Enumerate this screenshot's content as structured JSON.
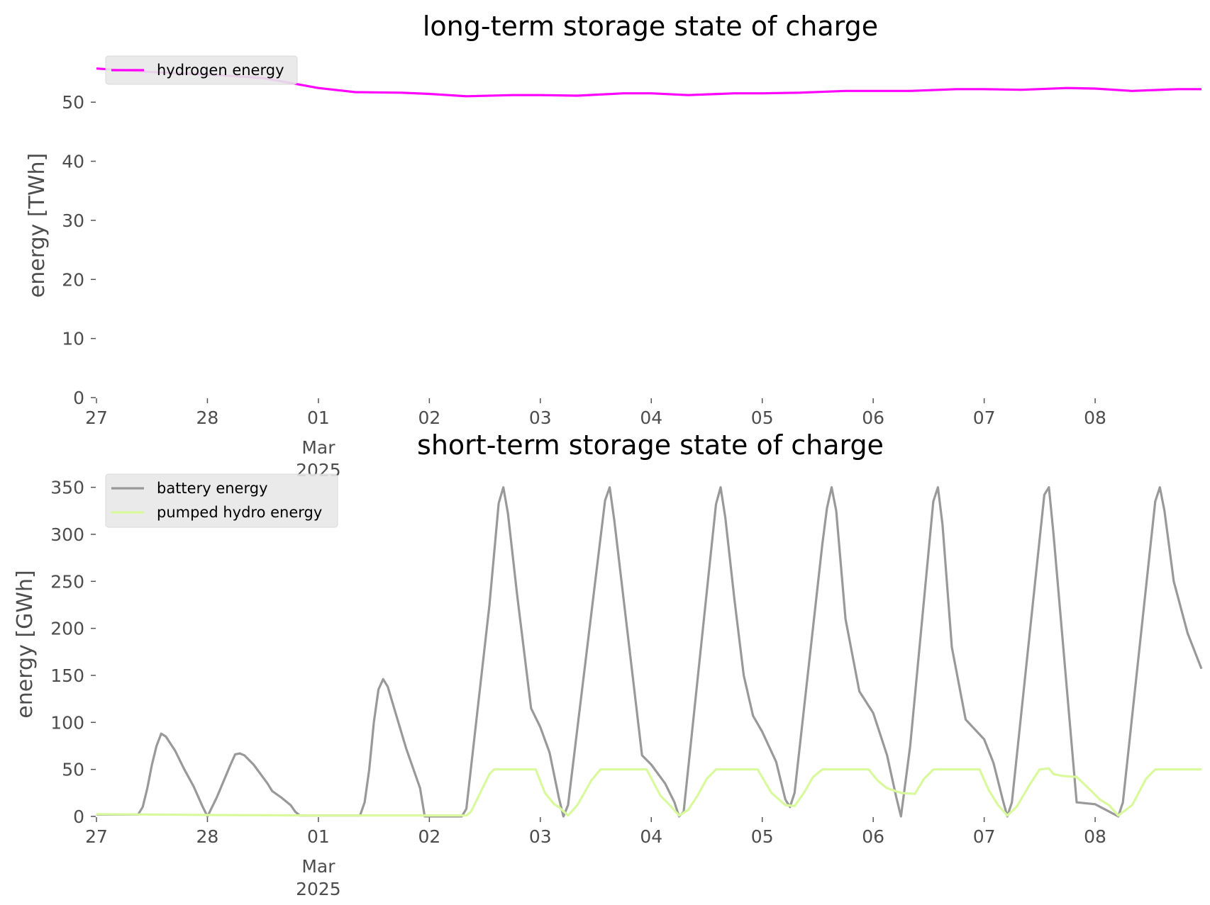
{
  "chart_data": [
    {
      "type": "line",
      "title": "long-term storage state of charge",
      "ylabel": "energy [TWh]",
      "xlabel": "",
      "ylim": [
        0,
        56.5
      ],
      "yticks": [
        0,
        10,
        20,
        30,
        40,
        50
      ],
      "xlim": [
        "2025-02-27T00:00",
        "2025-03-08T23:00"
      ],
      "xticks": [
        "27",
        "28",
        "01",
        "02",
        "03",
        "04",
        "05",
        "06",
        "07",
        "08"
      ],
      "xtick_sublabel": [
        "Mar",
        "2025"
      ],
      "legend": "upper-left",
      "grid": false,
      "series": [
        {
          "name": "hydrogen energy",
          "color": "#ff00ff",
          "points": [
            [
              "2025-02-27T00:00",
              55.7
            ],
            [
              "2025-02-27T12:00",
              55.1
            ],
            [
              "2025-02-28T00:00",
              54.7
            ],
            [
              "2025-02-28T12:00",
              54.1
            ],
            [
              "2025-03-01T00:00",
              52.4
            ],
            [
              "2025-03-01T08:00",
              51.7
            ],
            [
              "2025-03-01T18:00",
              51.6
            ],
            [
              "2025-03-02T00:00",
              51.4
            ],
            [
              "2025-03-02T08:00",
              51.0
            ],
            [
              "2025-03-02T18:00",
              51.2
            ],
            [
              "2025-03-03T00:00",
              51.2
            ],
            [
              "2025-03-03T08:00",
              51.1
            ],
            [
              "2025-03-03T18:00",
              51.5
            ],
            [
              "2025-03-04T00:00",
              51.5
            ],
            [
              "2025-03-04T08:00",
              51.2
            ],
            [
              "2025-03-04T18:00",
              51.5
            ],
            [
              "2025-03-05T00:00",
              51.5
            ],
            [
              "2025-03-05T08:00",
              51.6
            ],
            [
              "2025-03-05T18:00",
              51.9
            ],
            [
              "2025-03-06T00:00",
              51.9
            ],
            [
              "2025-03-06T08:00",
              51.9
            ],
            [
              "2025-03-06T18:00",
              52.2
            ],
            [
              "2025-03-07T00:00",
              52.2
            ],
            [
              "2025-03-07T08:00",
              52.1
            ],
            [
              "2025-03-07T18:00",
              52.4
            ],
            [
              "2025-03-08T00:00",
              52.3
            ],
            [
              "2025-03-08T08:00",
              51.9
            ],
            [
              "2025-03-08T18:00",
              52.2
            ],
            [
              "2025-03-08T23:00",
              52.2
            ]
          ]
        }
      ]
    },
    {
      "type": "line",
      "title": "short-term storage state of charge",
      "ylabel": "energy [GWh]",
      "xlabel": "",
      "ylim": [
        0,
        355
      ],
      "yticks": [
        0,
        50,
        100,
        150,
        200,
        250,
        300,
        350
      ],
      "xlim": [
        "2025-02-27T00:00",
        "2025-03-08T23:00"
      ],
      "xticks": [
        "27",
        "28",
        "01",
        "02",
        "03",
        "04",
        "05",
        "06",
        "07",
        "08"
      ],
      "xtick_sublabel": [
        "Mar",
        "2025"
      ],
      "legend": "upper-left",
      "grid": false,
      "series": [
        {
          "name": "battery energy",
          "color": "#999999",
          "points": [
            [
              "2025-02-27T00:00",
              2
            ],
            [
              "2025-02-27T09:00",
              2
            ],
            [
              "2025-02-27T10:00",
              10
            ],
            [
              "2025-02-27T11:00",
              30
            ],
            [
              "2025-02-27T12:00",
              55
            ],
            [
              "2025-02-27T13:00",
              75
            ],
            [
              "2025-02-27T14:00",
              88
            ],
            [
              "2025-02-27T15:00",
              85
            ],
            [
              "2025-02-27T17:00",
              70
            ],
            [
              "2025-02-27T19:00",
              50
            ],
            [
              "2025-02-27T21:00",
              32
            ],
            [
              "2025-02-27T23:00",
              10
            ],
            [
              "2025-02-28T00:00",
              0
            ],
            [
              "2025-02-28T02:00",
              20
            ],
            [
              "2025-02-28T05:00",
              55
            ],
            [
              "2025-02-28T06:00",
              66
            ],
            [
              "2025-02-28T07:00",
              67
            ],
            [
              "2025-02-28T08:00",
              65
            ],
            [
              "2025-02-28T10:00",
              55
            ],
            [
              "2025-02-28T13:00",
              35
            ],
            [
              "2025-02-28T14:00",
              27
            ],
            [
              "2025-02-28T16:00",
              20
            ],
            [
              "2025-02-28T18:00",
              12
            ],
            [
              "2025-02-28T19:00",
              5
            ],
            [
              "2025-02-28T20:00",
              1
            ],
            [
              "2025-03-01T09:00",
              1
            ],
            [
              "2025-03-01T10:00",
              15
            ],
            [
              "2025-03-01T11:00",
              50
            ],
            [
              "2025-03-01T12:00",
              100
            ],
            [
              "2025-03-01T13:00",
              135
            ],
            [
              "2025-03-01T14:00",
              146
            ],
            [
              "2025-03-01T15:00",
              138
            ],
            [
              "2025-03-01T17:00",
              105
            ],
            [
              "2025-03-01T19:00",
              72
            ],
            [
              "2025-03-01T22:00",
              30
            ],
            [
              "2025-03-01T23:00",
              0
            ],
            [
              "2025-03-02T07:00",
              0
            ],
            [
              "2025-03-02T08:00",
              8
            ],
            [
              "2025-03-02T13:00",
              225
            ],
            [
              "2025-03-02T15:00",
              333
            ],
            [
              "2025-03-02T16:00",
              350
            ],
            [
              "2025-03-02T17:00",
              322
            ],
            [
              "2025-03-02T19:00",
              235
            ],
            [
              "2025-03-02T22:00",
              115
            ],
            [
              "2025-03-03T00:00",
              95
            ],
            [
              "2025-03-03T02:00",
              68
            ],
            [
              "2025-03-03T04:00",
              20
            ],
            [
              "2025-03-03T05:00",
              0
            ],
            [
              "2025-03-03T06:00",
              12
            ],
            [
              "2025-03-03T14:00",
              336
            ],
            [
              "2025-03-03T15:00",
              350
            ],
            [
              "2025-03-03T16:00",
              315
            ],
            [
              "2025-03-03T22:00",
              65
            ],
            [
              "2025-03-04T00:00",
              55
            ],
            [
              "2025-03-04T03:00",
              35
            ],
            [
              "2025-03-04T05:00",
              15
            ],
            [
              "2025-03-04T06:00",
              0
            ],
            [
              "2025-03-04T07:00",
              5
            ],
            [
              "2025-03-04T14:00",
              332
            ],
            [
              "2025-03-04T15:00",
              350
            ],
            [
              "2025-03-04T16:00",
              318
            ],
            [
              "2025-03-04T18:00",
              230
            ],
            [
              "2025-03-04T20:00",
              150
            ],
            [
              "2025-03-04T22:00",
              107
            ],
            [
              "2025-03-05T00:00",
              90
            ],
            [
              "2025-03-05T03:00",
              58
            ],
            [
              "2025-03-05T05:00",
              18
            ],
            [
              "2025-03-05T06:00",
              10
            ],
            [
              "2025-03-05T07:00",
              25
            ],
            [
              "2025-03-05T13:00",
              290
            ],
            [
              "2025-03-05T14:00",
              328
            ],
            [
              "2025-03-05T15:00",
              350
            ],
            [
              "2025-03-05T16:00",
              325
            ],
            [
              "2025-03-05T18:00",
              210
            ],
            [
              "2025-03-05T21:00",
              133
            ],
            [
              "2025-03-06T00:00",
              110
            ],
            [
              "2025-03-06T03:00",
              65
            ],
            [
              "2025-03-06T05:00",
              20
            ],
            [
              "2025-03-06T06:00",
              0
            ],
            [
              "2025-03-06T08:00",
              75
            ],
            [
              "2025-03-06T13:00",
              335
            ],
            [
              "2025-03-06T14:00",
              350
            ],
            [
              "2025-03-06T15:00",
              310
            ],
            [
              "2025-03-06T17:00",
              180
            ],
            [
              "2025-03-06T20:00",
              103
            ],
            [
              "2025-03-07T00:00",
              82
            ],
            [
              "2025-03-07T02:00",
              57
            ],
            [
              "2025-03-07T04:00",
              18
            ],
            [
              "2025-03-07T05:00",
              0
            ],
            [
              "2025-03-07T06:00",
              15
            ],
            [
              "2025-03-07T13:00",
              342
            ],
            [
              "2025-03-07T14:00",
              350
            ],
            [
              "2025-03-07T15:00",
              300
            ],
            [
              "2025-03-07T20:00",
              15
            ],
            [
              "2025-03-08T00:00",
              13
            ],
            [
              "2025-03-08T05:00",
              0
            ],
            [
              "2025-03-08T06:00",
              15
            ],
            [
              "2025-03-08T13:00",
              335
            ],
            [
              "2025-03-08T14:00",
              350
            ],
            [
              "2025-03-08T15:00",
              325
            ],
            [
              "2025-03-08T17:00",
              250
            ],
            [
              "2025-03-08T20:00",
              195
            ],
            [
              "2025-03-08T23:00",
              157
            ]
          ]
        },
        {
          "name": "pumped hydro energy",
          "color": "#d9f99d",
          "points": [
            [
              "2025-02-27T00:00",
              2.5
            ],
            [
              "2025-02-28T00:00",
              1.5
            ],
            [
              "2025-03-01T00:00",
              1
            ],
            [
              "2025-03-02T08:00",
              1
            ],
            [
              "2025-03-02T09:00",
              5
            ],
            [
              "2025-03-02T13:00",
              45
            ],
            [
              "2025-03-02T14:00",
              50
            ],
            [
              "2025-03-02T23:00",
              50
            ],
            [
              "2025-03-03T01:00",
              25
            ],
            [
              "2025-03-03T03:00",
              13
            ],
            [
              "2025-03-03T04:00",
              10
            ],
            [
              "2025-03-03T06:00",
              1
            ],
            [
              "2025-03-03T08:00",
              12
            ],
            [
              "2025-03-03T11:00",
              38
            ],
            [
              "2025-03-03T13:00",
              50
            ],
            [
              "2025-03-03T23:00",
              50
            ],
            [
              "2025-03-04T02:00",
              22
            ],
            [
              "2025-03-04T04:00",
              12
            ],
            [
              "2025-03-04T06:00",
              1
            ],
            [
              "2025-03-04T08:00",
              7
            ],
            [
              "2025-03-04T10:00",
              22
            ],
            [
              "2025-03-04T12:00",
              40
            ],
            [
              "2025-03-04T14:00",
              50
            ],
            [
              "2025-03-04T23:00",
              50
            ],
            [
              "2025-03-05T02:00",
              25
            ],
            [
              "2025-03-05T05:00",
              12
            ],
            [
              "2025-03-05T07:00",
              11
            ],
            [
              "2025-03-05T09:00",
              25
            ],
            [
              "2025-03-05T11:00",
              42
            ],
            [
              "2025-03-05T13:00",
              50
            ],
            [
              "2025-03-05T23:00",
              50
            ],
            [
              "2025-03-06T01:00",
              38
            ],
            [
              "2025-03-06T03:00",
              30
            ],
            [
              "2025-03-06T06:00",
              25
            ],
            [
              "2025-03-06T09:00",
              24
            ],
            [
              "2025-03-06T11:00",
              40
            ],
            [
              "2025-03-06T13:00",
              50
            ],
            [
              "2025-03-06T23:00",
              50
            ],
            [
              "2025-03-07T01:00",
              28
            ],
            [
              "2025-03-07T03:00",
              12
            ],
            [
              "2025-03-07T05:00",
              1
            ],
            [
              "2025-03-07T07:00",
              10
            ],
            [
              "2025-03-07T10:00",
              35
            ],
            [
              "2025-03-07T12:00",
              50
            ],
            [
              "2025-03-07T14:00",
              51
            ],
            [
              "2025-03-07T15:00",
              45
            ],
            [
              "2025-03-07T17:00",
              43
            ],
            [
              "2025-03-07T20:00",
              42
            ],
            [
              "2025-03-07T23:00",
              28
            ],
            [
              "2025-03-08T01:00",
              18
            ],
            [
              "2025-03-08T03:00",
              12
            ],
            [
              "2025-03-08T05:00",
              1
            ],
            [
              "2025-03-08T08:00",
              12
            ],
            [
              "2025-03-08T11:00",
              40
            ],
            [
              "2025-03-08T13:00",
              50
            ],
            [
              "2025-03-08T23:00",
              50
            ]
          ]
        }
      ]
    }
  ]
}
